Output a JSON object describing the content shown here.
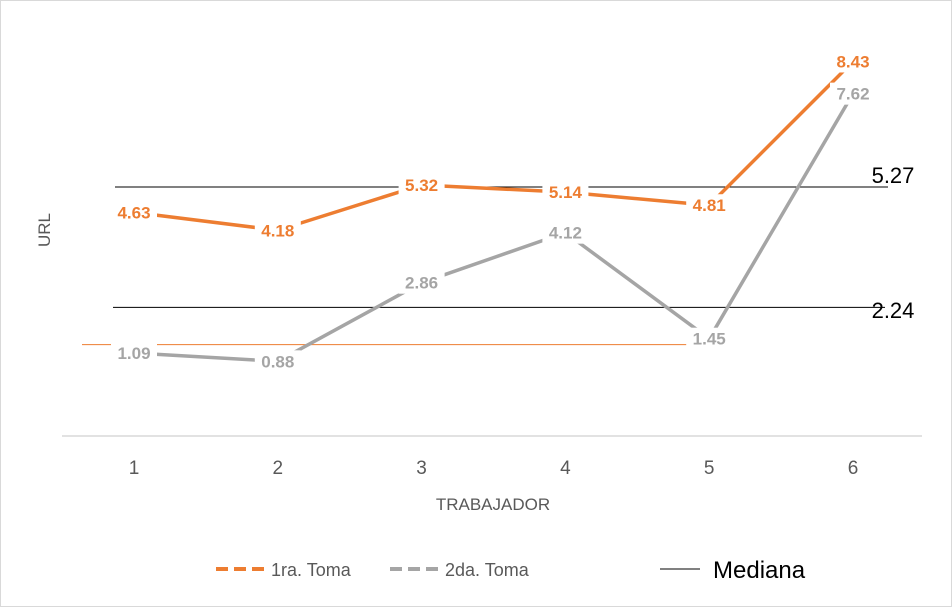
{
  "chart_data": {
    "type": "line",
    "xlabel": "TRABAJADOR",
    "ylabel": "URL",
    "x": [
      1,
      2,
      3,
      4,
      5,
      6
    ],
    "ylim": [
      -1.0,
      9.6
    ],
    "grid": false,
    "legend_position": "bottom",
    "series": [
      {
        "name": "1ra. Toma",
        "values": [
          4.63,
          4.18,
          5.32,
          5.14,
          4.81,
          8.43
        ],
        "labels": [
          "4.63",
          "4.18",
          "5.32",
          "5.14",
          "4.81",
          "8.43"
        ],
        "color": "#ED7D31"
      },
      {
        "name": "2da. Toma",
        "values": [
          1.09,
          0.88,
          2.86,
          4.12,
          1.45,
          7.62
        ],
        "labels": [
          "1.09",
          "0.88",
          "2.86",
          "4.12",
          "1.45",
          "7.62"
        ],
        "color": "#A5A5A5"
      }
    ],
    "reference_lines": [
      {
        "value": 5.27,
        "label": "5.27",
        "color": "#000000"
      },
      {
        "value": 2.24,
        "label": "2.24",
        "color": "#000000"
      },
      {
        "value": 1.3,
        "label": "",
        "color": "#ED7D31"
      }
    ],
    "legend": [
      {
        "name": "1ra. Toma",
        "style": "dashed",
        "color": "#ED7D31"
      },
      {
        "name": "2da. Toma",
        "style": "dashed",
        "color": "#A5A5A5"
      },
      {
        "name": "Mediana",
        "style": "solid-thin",
        "color": "#000000"
      }
    ]
  }
}
